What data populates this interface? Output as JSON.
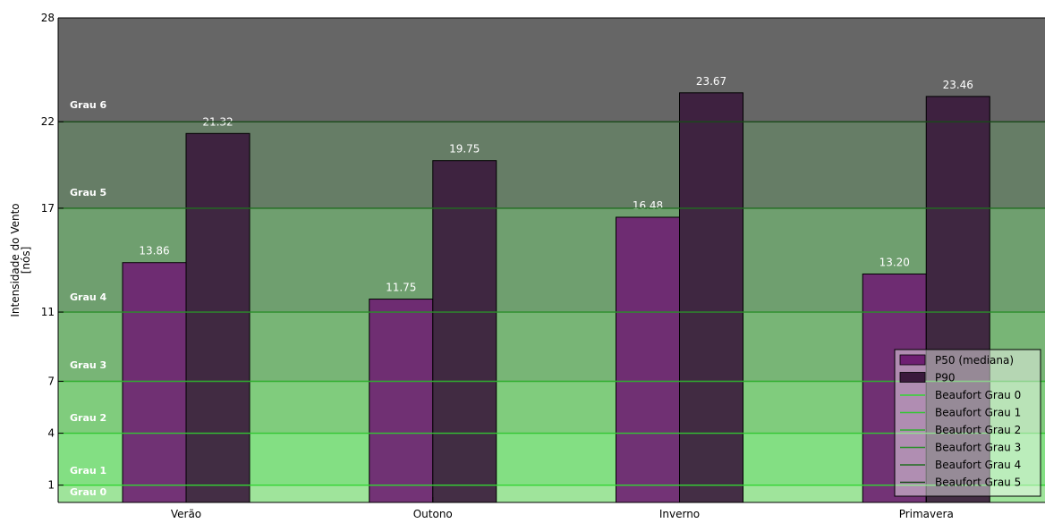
{
  "chart_data": {
    "type": "bar",
    "ylabel": "Intensidade do Vento\n[nós]",
    "ylim": [
      0,
      28
    ],
    "yticks": [
      1,
      4,
      7,
      11,
      17,
      22,
      28
    ],
    "categories": [
      "Verão",
      "Outono",
      "Inverno",
      "Primavera"
    ],
    "series": [
      {
        "name": "P50 (mediana)",
        "color": "#6e1f72",
        "values": [
          13.86,
          11.75,
          16.48,
          13.2
        ]
      },
      {
        "name": "P90",
        "color": "#3a1a3c",
        "values": [
          21.32,
          19.75,
          23.67,
          23.46
        ]
      }
    ],
    "value_labels": {
      "P50 (mediana)": [
        "13.86",
        "11.75",
        "16.48",
        "13.20"
      ],
      "P90": [
        "21.32",
        "19.75",
        "23.67",
        "23.46"
      ]
    },
    "bands": [
      {
        "label": "Grau 0",
        "from": 0,
        "to": 1,
        "color": "#9fe49b"
      },
      {
        "label": "Grau 1",
        "from": 1,
        "to": 4,
        "color": "#83df83"
      },
      {
        "label": "Grau 2",
        "from": 4,
        "to": 7,
        "color": "#80cc7d"
      },
      {
        "label": "Grau 3",
        "from": 7,
        "to": 11,
        "color": "#78b576"
      },
      {
        "label": "Grau 4",
        "from": 11,
        "to": 17,
        "color": "#6f9f6f"
      },
      {
        "label": "Grau 5",
        "from": 17,
        "to": 22,
        "color": "#667d66"
      },
      {
        "label": "Grau 6",
        "from": 22,
        "to": 28,
        "color": "#666666"
      }
    ],
    "beaufort_lines": [
      {
        "name": "Beaufort Grau 0",
        "value": 1,
        "color": "#33d633"
      },
      {
        "name": "Beaufort Grau 1",
        "value": 4,
        "color": "#33c633"
      },
      {
        "name": "Beaufort Grau 2",
        "value": 7,
        "color": "#2fae2f"
      },
      {
        "name": "Beaufort Grau 3",
        "value": 11,
        "color": "#2a8f2a"
      },
      {
        "name": "Beaufort Grau 4",
        "value": 17,
        "color": "#216e21"
      },
      {
        "name": "Beaufort Grau 5",
        "value": 22,
        "color": "#184a18"
      }
    ],
    "legend_position": "lower-right",
    "grid": false
  }
}
